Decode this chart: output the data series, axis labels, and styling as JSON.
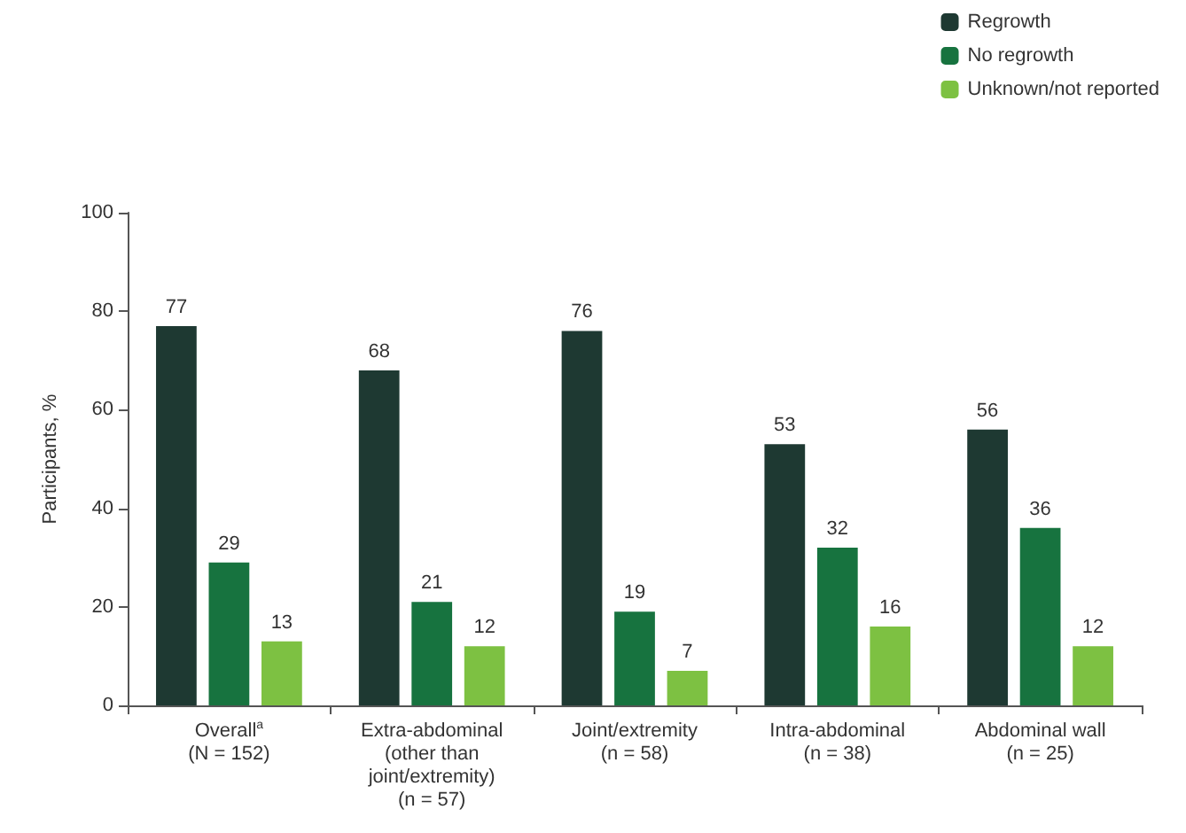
{
  "chart_data": {
    "type": "bar",
    "ylabel": "Participants, %",
    "categories": [
      "Overall$^{a}$\n(N = 152)",
      "Extra-abdominal\n(other than\njoint/extremity)\n(n = 57)",
      "Joint/extremity\n(n = 58)",
      "Intra-abdominal\n(n = 38)",
      "Abdominal wall\n(n = 25)"
    ],
    "series": [
      {
        "name": "Regrowth",
        "color": "#1e3932",
        "values": [
          77,
          68,
          76,
          53,
          56
        ]
      },
      {
        "name": "No regrowth",
        "color": "#17733f",
        "values": [
          29,
          21,
          19,
          32,
          36
        ]
      },
      {
        "name": "Unknown/not reported",
        "color": "#7dc142",
        "values": [
          13,
          12,
          7,
          16,
          12
        ]
      }
    ],
    "ylim": [
      0,
      100
    ],
    "yticks": [
      0,
      20,
      40,
      60,
      80,
      100
    ],
    "grid": false,
    "legend": "top right",
    "data_labels": true
  }
}
